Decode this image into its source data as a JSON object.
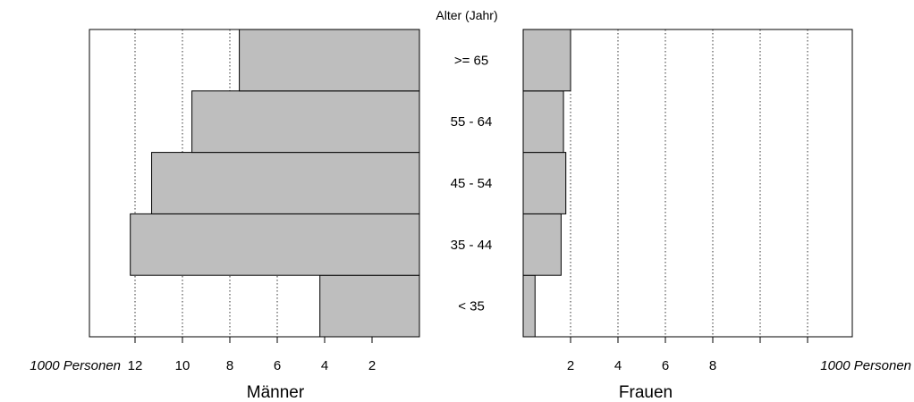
{
  "chart_data": {
    "type": "bar",
    "orientation": "horizontal",
    "layout": "population-pyramid",
    "center_title": "Alter (Jahr)",
    "categories": [
      "< 35",
      "35 - 44",
      "45 - 54",
      "55 - 64",
      ">= 65"
    ],
    "unit_label_left": "1000 Personen",
    "unit_label_right": "1000 Personen",
    "panels": [
      {
        "name": "Männer",
        "xlim": [
          0,
          14
        ],
        "reversed": true,
        "ticks": [
          2,
          4,
          6,
          8,
          10,
          12
        ],
        "grid": true,
        "values": [
          4.2,
          12.2,
          11.3,
          9.6,
          7.6
        ]
      },
      {
        "name": "Frauen",
        "xlim": [
          0,
          14
        ],
        "reversed": false,
        "ticks": [
          2,
          4,
          6,
          8
        ],
        "extra_ticks_unlabeled": [
          10,
          12
        ],
        "grid": true,
        "values": [
          0.5,
          1.6,
          1.8,
          1.7,
          2.0
        ]
      }
    ]
  }
}
